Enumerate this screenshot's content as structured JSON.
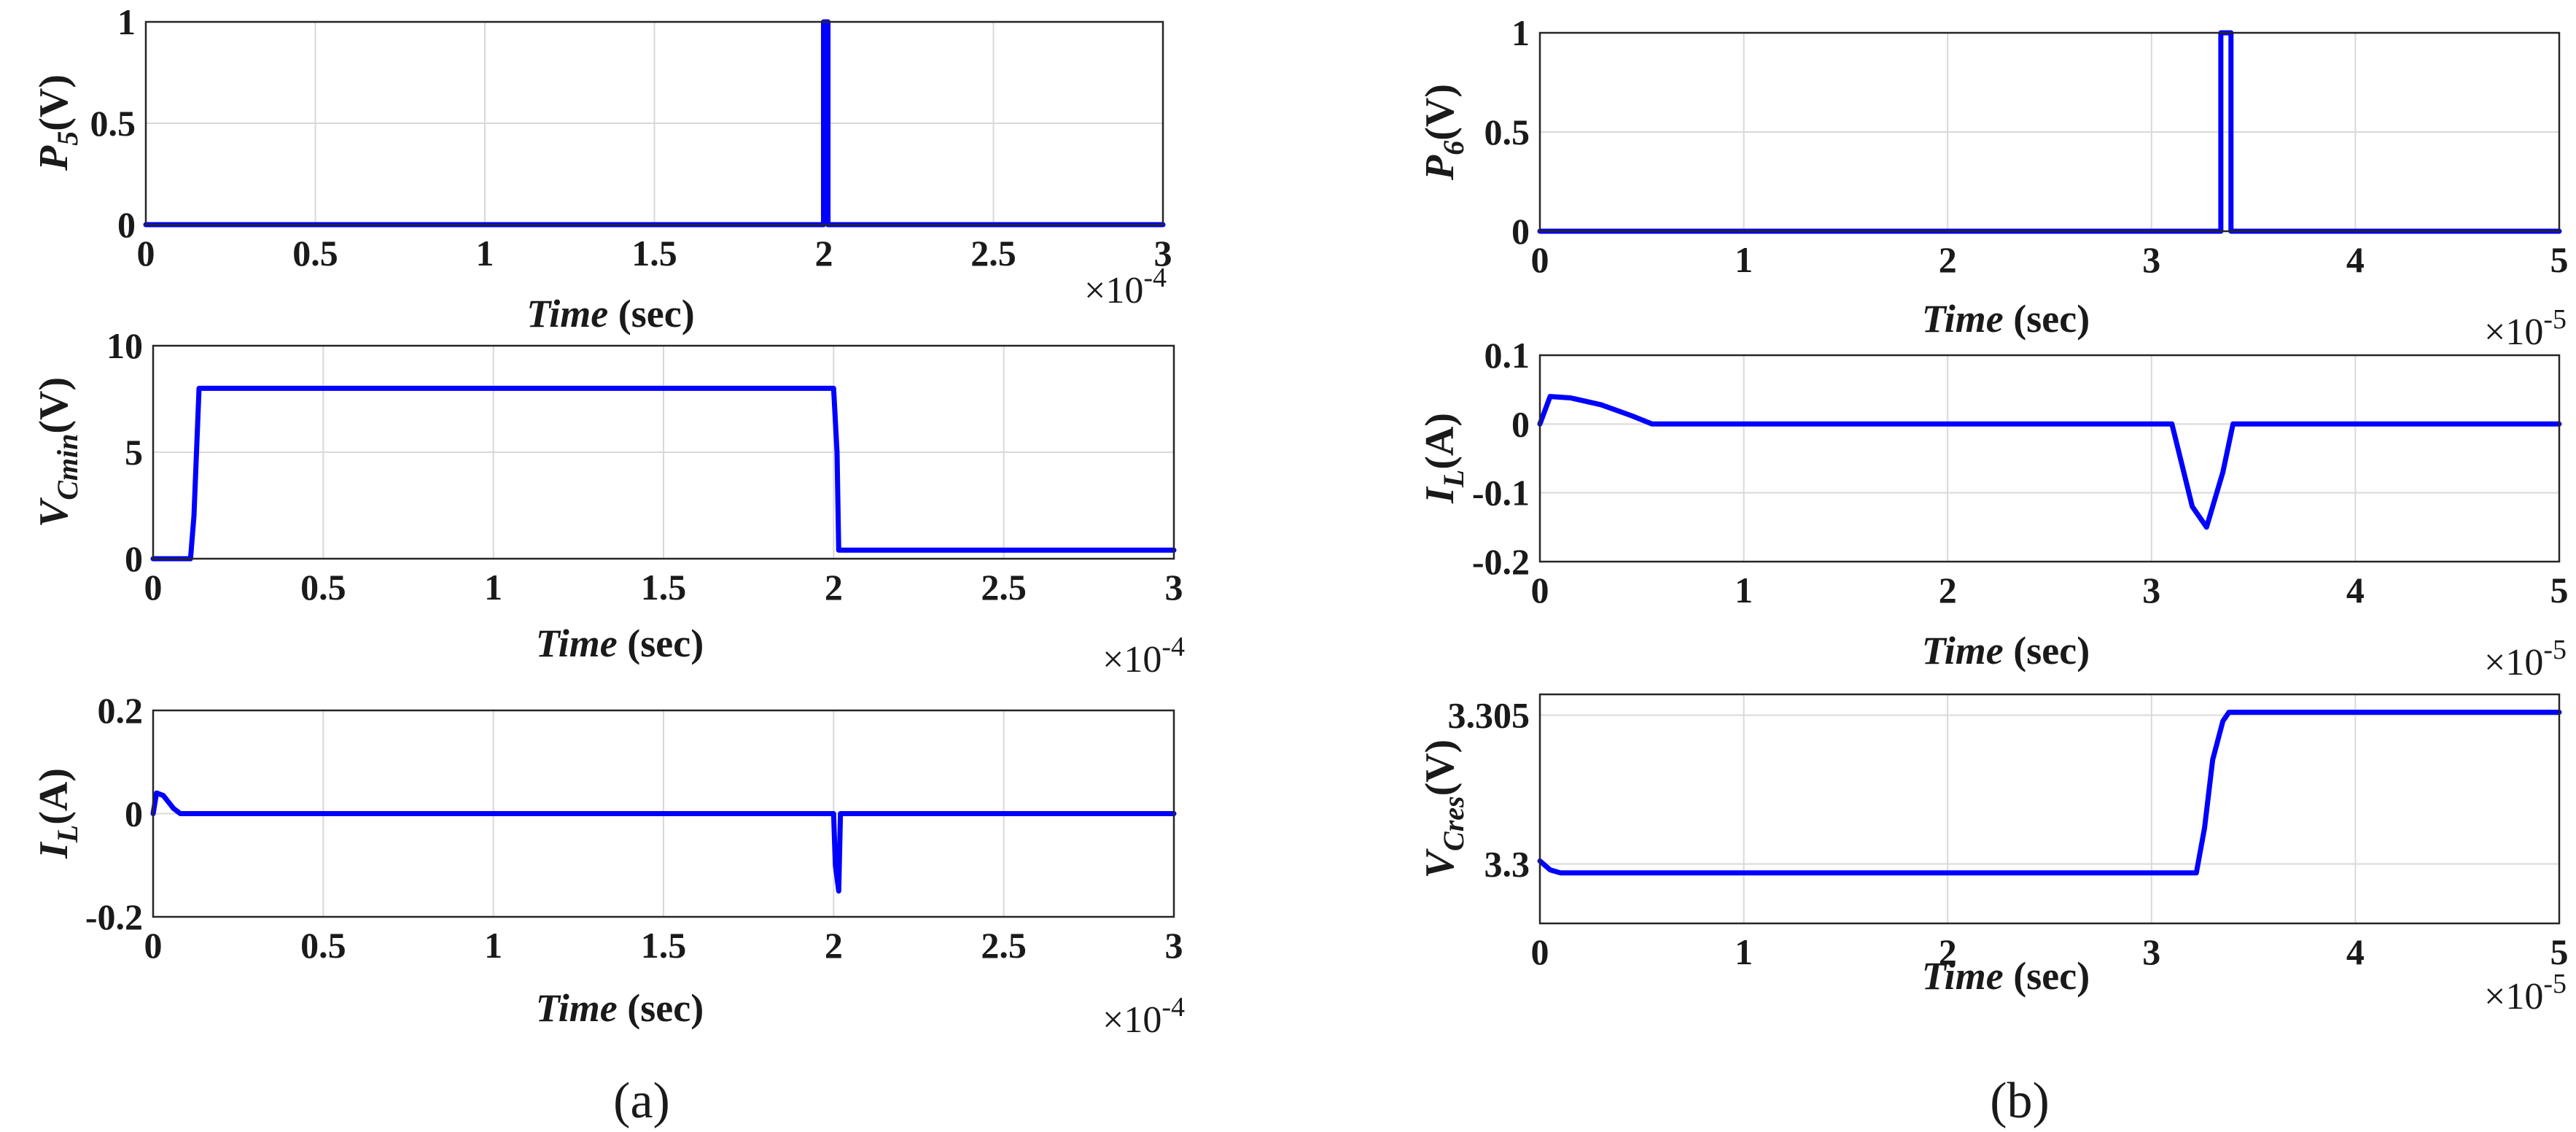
{
  "chart_data": [
    {
      "panel": "a",
      "type": "line",
      "ylabel": {
        "main": "P",
        "sub": "5",
        "unit": "(V)"
      },
      "xlabel": {
        "italic": "Time",
        "rest": " (sec)"
      },
      "xlim": [
        0,
        3
      ],
      "ylim": [
        0,
        1
      ],
      "x_exponent": "-4",
      "xticks": [
        "0",
        "0.5",
        "1",
        "1.5",
        "2",
        "2.5",
        "3"
      ],
      "yticks": [
        "0",
        "0.5",
        "1"
      ],
      "series": [
        {
          "x": [
            0,
            1.999,
            1.999,
            2.012,
            2.012,
            3
          ],
          "y": [
            0,
            0,
            1,
            1,
            0,
            0
          ]
        }
      ]
    },
    {
      "panel": "a",
      "type": "line",
      "ylabel": {
        "main": "V",
        "sub": "Cmin",
        "unit": "(V)"
      },
      "xlabel": {
        "italic": "Time",
        "rest": " (sec)"
      },
      "xlim": [
        0,
        3
      ],
      "ylim": [
        0,
        10
      ],
      "x_exponent": "-4",
      "xticks": [
        "0",
        "0.5",
        "1",
        "1.5",
        "2",
        "2.5",
        "3"
      ],
      "yticks": [
        "0",
        "5",
        "10"
      ],
      "series": [
        {
          "x": [
            0,
            0.11,
            0.12,
            0.135,
            2.0,
            2.01,
            2.015,
            3
          ],
          "y": [
            0,
            0,
            2,
            8,
            8,
            5,
            0.4,
            0.4
          ]
        }
      ]
    },
    {
      "panel": "a",
      "type": "line",
      "ylabel": {
        "main": "I",
        "sub": "L",
        "unit": "(A)"
      },
      "xlabel": {
        "italic": "Time",
        "rest": " (sec)"
      },
      "xlim": [
        0,
        3
      ],
      "ylim": [
        -0.2,
        0.2
      ],
      "x_exponent": "-4",
      "xticks": [
        "0",
        "0.5",
        "1",
        "1.5",
        "2",
        "2.5",
        "3"
      ],
      "yticks": [
        "-0.2",
        "0",
        "0.2"
      ],
      "series": [
        {
          "x": [
            0,
            0.01,
            0.03,
            0.06,
            0.08,
            2.0,
            2.005,
            2.015,
            2.02,
            3
          ],
          "y": [
            0,
            0.04,
            0.035,
            0.01,
            0,
            0,
            -0.1,
            -0.15,
            0,
            0
          ]
        }
      ]
    },
    {
      "panel": "b",
      "type": "line",
      "ylabel": {
        "main": "P",
        "sub": "6",
        "unit": "(V)"
      },
      "xlabel": {
        "italic": "Time",
        "rest": " (sec)"
      },
      "xlim": [
        0,
        5
      ],
      "ylim": [
        0,
        1
      ],
      "x_exponent": "-5",
      "xticks": [
        "0",
        "1",
        "2",
        "3",
        "4",
        "5"
      ],
      "yticks": [
        "0",
        "0.5",
        "1"
      ],
      "series": [
        {
          "x": [
            0,
            3.34,
            3.34,
            3.39,
            3.39,
            5
          ],
          "y": [
            0,
            0,
            1,
            1,
            0,
            0
          ]
        }
      ]
    },
    {
      "panel": "b",
      "type": "line",
      "ylabel": {
        "main": "I",
        "sub": "L",
        "unit": "(A)"
      },
      "xlabel": {
        "italic": "Time",
        "rest": " (sec)"
      },
      "xlim": [
        0,
        5
      ],
      "ylim": [
        -0.2,
        0.1
      ],
      "x_exponent": "-5",
      "xticks": [
        "0",
        "1",
        "2",
        "3",
        "4",
        "5"
      ],
      "yticks": [
        "-0.2",
        "-0.1",
        "0",
        "0.1"
      ],
      "series": [
        {
          "x": [
            0,
            0.05,
            0.15,
            0.3,
            0.45,
            0.55,
            3.1,
            3.2,
            3.27,
            3.35,
            3.4,
            5
          ],
          "y": [
            0,
            0.04,
            0.038,
            0.028,
            0.012,
            0,
            0,
            -0.12,
            -0.15,
            -0.07,
            0,
            0
          ]
        }
      ]
    },
    {
      "panel": "b",
      "type": "line",
      "ylabel": {
        "main": "V",
        "sub": "Cres",
        "unit": "(V)"
      },
      "xlabel": {
        "italic": "Time",
        "rest": " (sec)"
      },
      "xlim": [
        0,
        5
      ],
      "ylim": [
        3.298,
        3.3057
      ],
      "x_exponent": "-5",
      "xticks": [
        "0",
        "1",
        "2",
        "3",
        "4",
        "5"
      ],
      "yticks": [
        "3.3",
        "3.305"
      ],
      "series": [
        {
          "x": [
            0,
            0.05,
            0.1,
            3.22,
            3.26,
            3.3,
            3.35,
            3.38,
            5
          ],
          "y": [
            3.3001,
            3.2998,
            3.2997,
            3.2997,
            3.3012,
            3.3035,
            3.3048,
            3.3051,
            3.3051
          ]
        }
      ]
    }
  ],
  "captions": {
    "a": "(a)",
    "b": "(b)"
  },
  "exponent_base": "×10"
}
